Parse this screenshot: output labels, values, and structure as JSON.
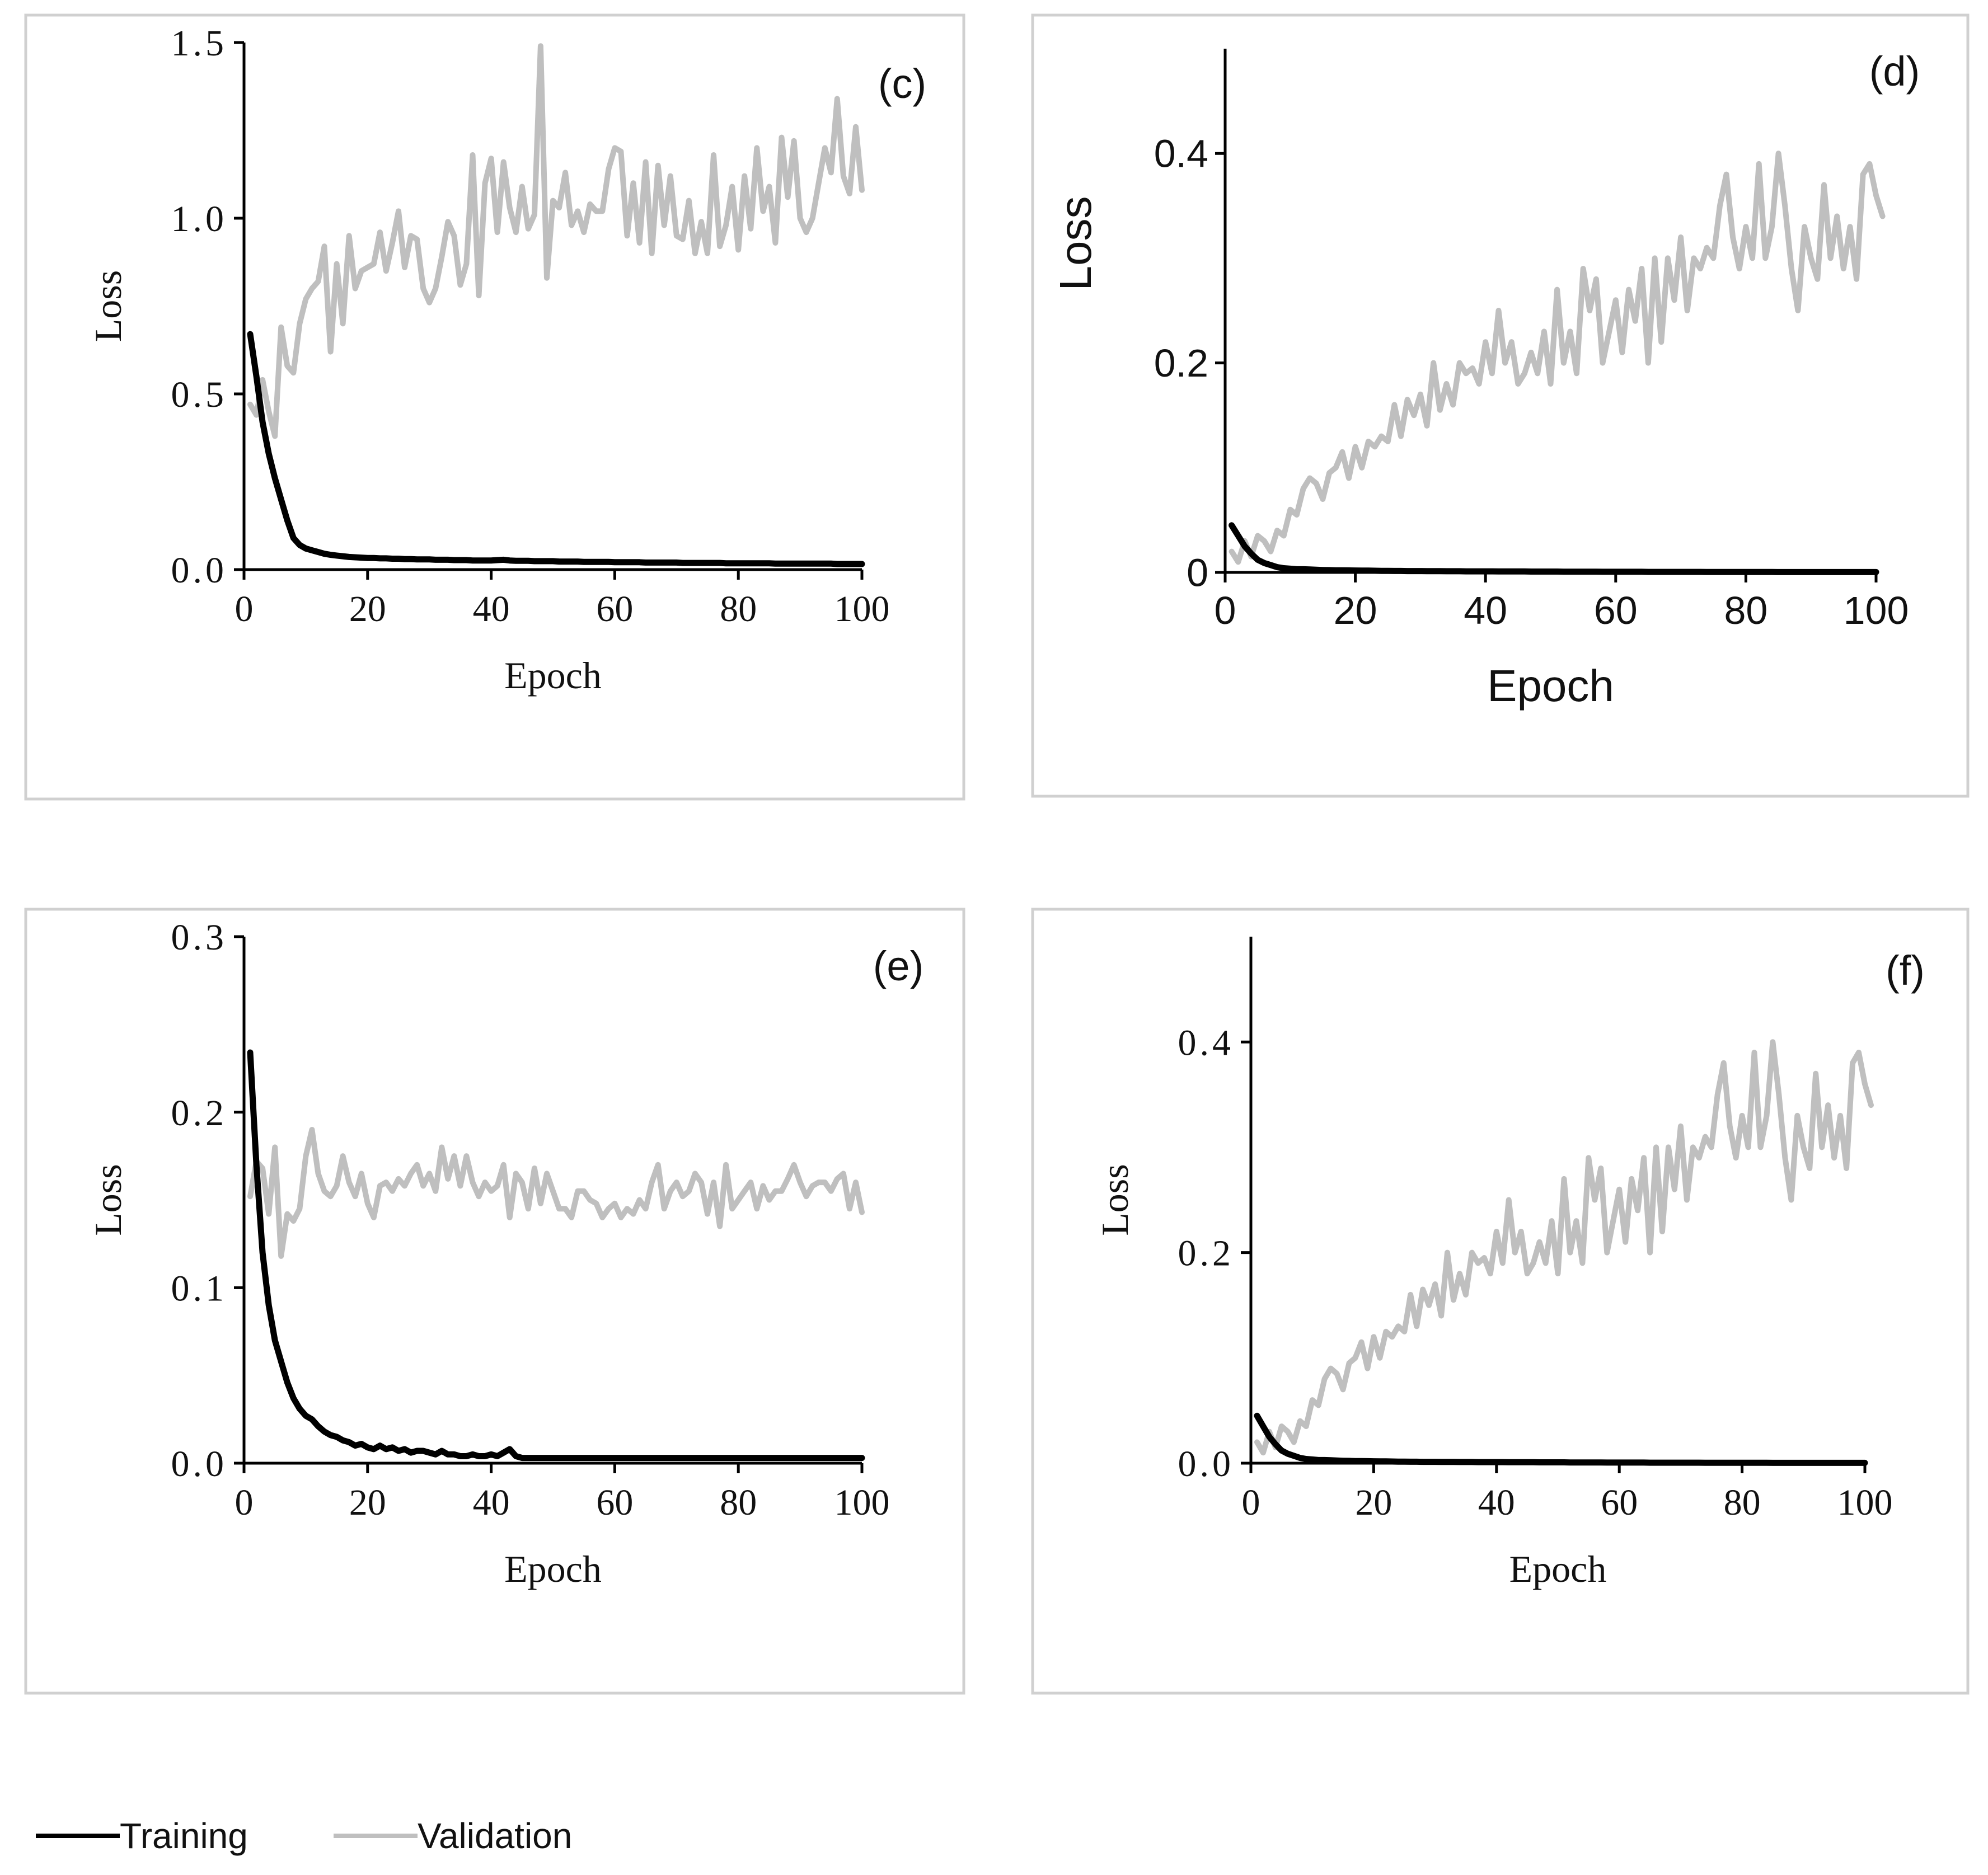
{
  "legend": {
    "training_label": "Training",
    "validation_label": "Validation",
    "training_color": "#000000",
    "validation_color": "#bfbfbf"
  },
  "chart_data": [
    {
      "type": "line",
      "panel_label": "(c)",
      "xlabel": "Epoch",
      "ylabel": "Loss",
      "xlim": [
        0,
        100
      ],
      "ylim": [
        0,
        1.5
      ],
      "x_ticks": [
        "0",
        "20",
        "40",
        "60",
        "80",
        "100"
      ],
      "y_ticks": [
        "0.0",
        "0.5",
        "1.0",
        "1.5"
      ],
      "font": "serif",
      "series": [
        {
          "name": "Training",
          "values": [
            0.67,
            0.55,
            0.42,
            0.33,
            0.26,
            0.2,
            0.14,
            0.09,
            0.07,
            0.06,
            0.055,
            0.05,
            0.045,
            0.042,
            0.04,
            0.038,
            0.036,
            0.035,
            0.034,
            0.033,
            0.033,
            0.032,
            0.032,
            0.031,
            0.031,
            0.03,
            0.03,
            0.029,
            0.029,
            0.029,
            0.028,
            0.028,
            0.028,
            0.027,
            0.027,
            0.027,
            0.026,
            0.026,
            0.026,
            0.026,
            0.027,
            0.028,
            0.026,
            0.025,
            0.025,
            0.025,
            0.024,
            0.024,
            0.024,
            0.024,
            0.023,
            0.023,
            0.023,
            0.023,
            0.022,
            0.022,
            0.022,
            0.022,
            0.022,
            0.021,
            0.021,
            0.021,
            0.021,
            0.021,
            0.02,
            0.02,
            0.02,
            0.02,
            0.02,
            0.02,
            0.019,
            0.019,
            0.019,
            0.019,
            0.019,
            0.019,
            0.019,
            0.018,
            0.018,
            0.018,
            0.018,
            0.018,
            0.018,
            0.018,
            0.018,
            0.017,
            0.017,
            0.017,
            0.017,
            0.017,
            0.017,
            0.017,
            0.017,
            0.017,
            0.017,
            0.016,
            0.016,
            0.016,
            0.016,
            0.016
          ]
        },
        {
          "name": "Validation",
          "values": [
            0.47,
            0.44,
            0.54,
            0.45,
            0.38,
            0.69,
            0.58,
            0.56,
            0.7,
            0.77,
            0.8,
            0.82,
            0.92,
            0.62,
            0.87,
            0.7,
            0.95,
            0.8,
            0.85,
            0.86,
            0.87,
            0.96,
            0.85,
            0.93,
            1.02,
            0.86,
            0.95,
            0.94,
            0.8,
            0.76,
            0.8,
            0.89,
            0.99,
            0.95,
            0.81,
            0.87,
            1.18,
            0.78,
            1.1,
            1.17,
            0.96,
            1.16,
            1.03,
            0.96,
            1.09,
            0.97,
            1.01,
            1.49,
            0.83,
            1.05,
            1.03,
            1.13,
            0.98,
            1.02,
            0.96,
            1.04,
            1.02,
            1.02,
            1.14,
            1.2,
            1.19,
            0.95,
            1.1,
            0.93,
            1.16,
            0.9,
            1.15,
            0.98,
            1.12,
            0.95,
            0.94,
            1.05,
            0.9,
            0.99,
            0.9,
            1.18,
            0.92,
            0.98,
            1.09,
            0.91,
            1.12,
            0.97,
            1.2,
            1.02,
            1.09,
            0.93,
            1.23,
            1.06,
            1.22,
            1.0,
            0.96,
            1.0,
            1.1,
            1.2,
            1.13,
            1.34,
            1.12,
            1.07,
            1.26,
            1.08
          ]
        }
      ]
    },
    {
      "type": "line",
      "panel_label": "(d)",
      "xlabel": "Epoch",
      "ylabel": "Loss",
      "xlim": [
        0,
        100
      ],
      "ylim": [
        0,
        0.5
      ],
      "x_ticks": [
        "0",
        "20",
        "40",
        "60",
        "80",
        "100"
      ],
      "y_ticks": [
        "0",
        "0.2",
        "0.4"
      ],
      "font": "sans",
      "series": [
        {
          "name": "Training",
          "values": [
            0.045,
            0.035,
            0.025,
            0.018,
            0.012,
            0.009,
            0.007,
            0.005,
            0.004,
            0.0035,
            0.003,
            0.003,
            0.0028,
            0.0025,
            0.0023,
            0.0022,
            0.002,
            0.002,
            0.0019,
            0.0018,
            0.0017,
            0.0017,
            0.0016,
            0.0015,
            0.0015,
            0.0014,
            0.0014,
            0.0013,
            0.0013,
            0.0013,
            0.0012,
            0.0012,
            0.0012,
            0.0011,
            0.0011,
            0.0011,
            0.001,
            0.001,
            0.001,
            0.001,
            0.001,
            0.0009,
            0.0009,
            0.0009,
            0.0009,
            0.0009,
            0.0008,
            0.0008,
            0.0008,
            0.0008,
            0.0008,
            0.0007,
            0.0007,
            0.0007,
            0.0007,
            0.0007,
            0.0007,
            0.0006,
            0.0006,
            0.0006,
            0.0006,
            0.0006,
            0.0006,
            0.0006,
            0.0005,
            0.0005,
            0.0005,
            0.0005,
            0.0005,
            0.0005,
            0.0005,
            0.0005,
            0.0005,
            0.0004,
            0.0004,
            0.0004,
            0.0004,
            0.0004,
            0.0004,
            0.0004,
            0.0004,
            0.0004,
            0.0004,
            0.0004,
            0.0003,
            0.0003,
            0.0003,
            0.0003,
            0.0003,
            0.0003,
            0.0003,
            0.0003,
            0.0003,
            0.0003,
            0.0003,
            0.0003,
            0.0003,
            0.0003,
            0.0003,
            0.0003
          ]
        },
        {
          "name": "Validation",
          "values": [
            0.02,
            0.01,
            0.03,
            0.015,
            0.035,
            0.03,
            0.02,
            0.04,
            0.035,
            0.06,
            0.055,
            0.08,
            0.09,
            0.085,
            0.07,
            0.095,
            0.1,
            0.115,
            0.09,
            0.12,
            0.1,
            0.125,
            0.12,
            0.13,
            0.125,
            0.16,
            0.13,
            0.165,
            0.15,
            0.17,
            0.14,
            0.2,
            0.155,
            0.18,
            0.16,
            0.2,
            0.19,
            0.195,
            0.18,
            0.22,
            0.19,
            0.25,
            0.2,
            0.22,
            0.18,
            0.19,
            0.21,
            0.19,
            0.23,
            0.18,
            0.27,
            0.2,
            0.23,
            0.19,
            0.29,
            0.25,
            0.28,
            0.2,
            0.23,
            0.26,
            0.21,
            0.27,
            0.24,
            0.29,
            0.2,
            0.3,
            0.22,
            0.3,
            0.26,
            0.32,
            0.25,
            0.3,
            0.29,
            0.31,
            0.3,
            0.35,
            0.38,
            0.32,
            0.29,
            0.33,
            0.3,
            0.39,
            0.3,
            0.33,
            0.4,
            0.35,
            0.29,
            0.25,
            0.33,
            0.3,
            0.28,
            0.37,
            0.3,
            0.34,
            0.29,
            0.33,
            0.28,
            0.38,
            0.39,
            0.36,
            0.34
          ]
        }
      ]
    },
    {
      "type": "line",
      "panel_label": "(e)",
      "xlabel": "Epoch",
      "ylabel": "Loss",
      "xlim": [
        0,
        100
      ],
      "ylim": [
        0,
        0.3
      ],
      "x_ticks": [
        "0",
        "20",
        "40",
        "60",
        "80",
        "100"
      ],
      "y_ticks": [
        "0.0",
        "0.1",
        "0.2",
        "0.3"
      ],
      "font": "serif",
      "series": [
        {
          "name": "Training",
          "values": [
            0.234,
            0.17,
            0.12,
            0.09,
            0.07,
            0.058,
            0.046,
            0.037,
            0.031,
            0.027,
            0.025,
            0.021,
            0.018,
            0.016,
            0.015,
            0.013,
            0.012,
            0.01,
            0.011,
            0.009,
            0.008,
            0.01,
            0.008,
            0.009,
            0.007,
            0.008,
            0.006,
            0.007,
            0.007,
            0.006,
            0.005,
            0.007,
            0.005,
            0.005,
            0.004,
            0.004,
            0.005,
            0.004,
            0.004,
            0.005,
            0.004,
            0.006,
            0.008,
            0.004,
            0.003,
            0.003,
            0.003,
            0.003,
            0.003,
            0.003,
            0.003,
            0.003,
            0.003,
            0.003,
            0.003,
            0.003,
            0.003,
            0.003,
            0.003,
            0.003,
            0.003,
            0.003,
            0.003,
            0.003,
            0.003,
            0.003,
            0.003,
            0.003,
            0.003,
            0.003,
            0.003,
            0.003,
            0.003,
            0.003,
            0.003,
            0.003,
            0.003,
            0.003,
            0.003,
            0.003,
            0.003,
            0.003,
            0.003,
            0.003,
            0.003,
            0.003,
            0.003,
            0.003,
            0.003,
            0.003,
            0.003,
            0.003,
            0.003,
            0.003,
            0.003,
            0.003,
            0.003,
            0.003,
            0.003,
            0.003
          ]
        },
        {
          "name": "Validation",
          "values": [
            0.152,
            0.172,
            0.168,
            0.142,
            0.18,
            0.118,
            0.142,
            0.138,
            0.145,
            0.175,
            0.19,
            0.165,
            0.155,
            0.152,
            0.158,
            0.175,
            0.16,
            0.152,
            0.165,
            0.148,
            0.14,
            0.158,
            0.16,
            0.155,
            0.162,
            0.158,
            0.165,
            0.17,
            0.158,
            0.165,
            0.155,
            0.18,
            0.162,
            0.175,
            0.158,
            0.175,
            0.16,
            0.152,
            0.16,
            0.155,
            0.158,
            0.17,
            0.14,
            0.165,
            0.16,
            0.145,
            0.168,
            0.148,
            0.165,
            0.155,
            0.145,
            0.145,
            0.14,
            0.155,
            0.155,
            0.15,
            0.148,
            0.14,
            0.145,
            0.148,
            0.14,
            0.145,
            0.142,
            0.15,
            0.145,
            0.16,
            0.17,
            0.145,
            0.155,
            0.16,
            0.152,
            0.155,
            0.165,
            0.16,
            0.142,
            0.16,
            0.135,
            0.17,
            0.145,
            0.15,
            0.155,
            0.16,
            0.145,
            0.158,
            0.15,
            0.155,
            0.155,
            0.162,
            0.17,
            0.16,
            0.152,
            0.158,
            0.16,
            0.16,
            0.155,
            0.162,
            0.165,
            0.145,
            0.16,
            0.143
          ]
        }
      ]
    },
    {
      "type": "line",
      "panel_label": "(f)",
      "xlabel": "Epoch",
      "ylabel": "Loss",
      "xlim": [
        0,
        100
      ],
      "ylim": [
        0,
        0.5
      ],
      "x_ticks": [
        "0",
        "20",
        "40",
        "60",
        "80",
        "100"
      ],
      "y_ticks": [
        "0.0",
        "0.2",
        "0.4"
      ],
      "font": "serif",
      "series": [
        {
          "name": "Training",
          "values": [
            0.045,
            0.035,
            0.025,
            0.018,
            0.012,
            0.009,
            0.007,
            0.005,
            0.004,
            0.0035,
            0.003,
            0.003,
            0.0028,
            0.0025,
            0.0023,
            0.0022,
            0.002,
            0.002,
            0.0019,
            0.0018,
            0.0017,
            0.0017,
            0.0016,
            0.0015,
            0.0015,
            0.0014,
            0.0014,
            0.0013,
            0.0013,
            0.0013,
            0.0012,
            0.0012,
            0.0012,
            0.0011,
            0.0011,
            0.0011,
            0.001,
            0.001,
            0.001,
            0.001,
            0.001,
            0.0009,
            0.0009,
            0.0009,
            0.0009,
            0.0009,
            0.0008,
            0.0008,
            0.0008,
            0.0008,
            0.0008,
            0.0007,
            0.0007,
            0.0007,
            0.0007,
            0.0007,
            0.0007,
            0.0006,
            0.0006,
            0.0006,
            0.0006,
            0.0006,
            0.0006,
            0.0006,
            0.0005,
            0.0005,
            0.0005,
            0.0005,
            0.0005,
            0.0005,
            0.0005,
            0.0005,
            0.0005,
            0.0004,
            0.0004,
            0.0004,
            0.0004,
            0.0004,
            0.0004,
            0.0004,
            0.0004,
            0.0004,
            0.0004,
            0.0004,
            0.0003,
            0.0003,
            0.0003,
            0.0003,
            0.0003,
            0.0003,
            0.0003,
            0.0003,
            0.0003,
            0.0003,
            0.0003,
            0.0003,
            0.0003,
            0.0003,
            0.0003,
            0.0003
          ]
        },
        {
          "name": "Validation",
          "values": [
            0.02,
            0.01,
            0.03,
            0.015,
            0.035,
            0.03,
            0.02,
            0.04,
            0.035,
            0.06,
            0.055,
            0.08,
            0.09,
            0.085,
            0.07,
            0.095,
            0.1,
            0.115,
            0.09,
            0.12,
            0.1,
            0.125,
            0.12,
            0.13,
            0.125,
            0.16,
            0.13,
            0.165,
            0.15,
            0.17,
            0.14,
            0.2,
            0.155,
            0.18,
            0.16,
            0.2,
            0.19,
            0.195,
            0.18,
            0.22,
            0.19,
            0.25,
            0.2,
            0.22,
            0.18,
            0.19,
            0.21,
            0.19,
            0.23,
            0.18,
            0.27,
            0.2,
            0.23,
            0.19,
            0.29,
            0.25,
            0.28,
            0.2,
            0.23,
            0.26,
            0.21,
            0.27,
            0.24,
            0.29,
            0.2,
            0.3,
            0.22,
            0.3,
            0.26,
            0.32,
            0.25,
            0.3,
            0.29,
            0.31,
            0.3,
            0.35,
            0.38,
            0.32,
            0.29,
            0.33,
            0.3,
            0.39,
            0.3,
            0.33,
            0.4,
            0.35,
            0.29,
            0.25,
            0.33,
            0.3,
            0.28,
            0.37,
            0.3,
            0.34,
            0.29,
            0.33,
            0.28,
            0.38,
            0.39,
            0.36,
            0.34
          ]
        }
      ]
    }
  ]
}
